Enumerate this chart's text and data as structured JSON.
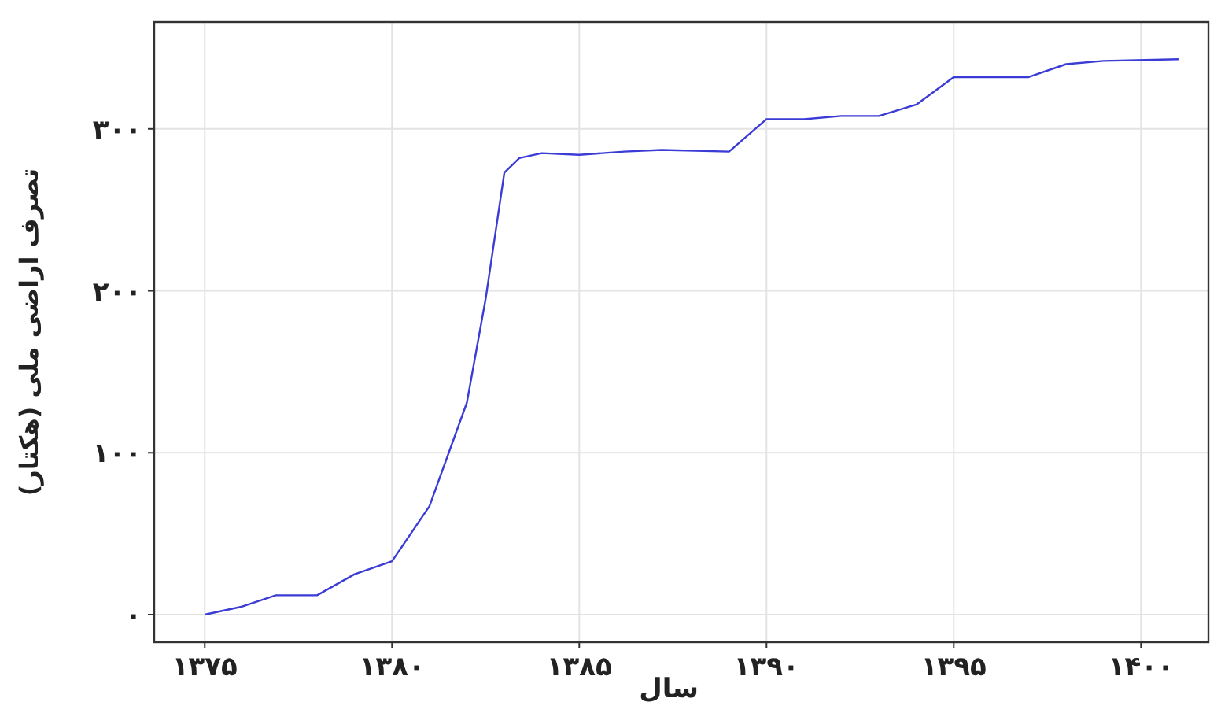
{
  "chart_data": {
    "type": "line",
    "xlabel": "سال",
    "ylabel": "تصرف اراضی ملی (هکتار)",
    "xlim": [
      1373.65,
      1401.8
    ],
    "ylim": [
      -17,
      366
    ],
    "xticks": [
      {
        "value": 1375,
        "label": "۱۳۷۵"
      },
      {
        "value": 1380,
        "label": "۱۳۸۰"
      },
      {
        "value": 1385,
        "label": "۱۳۸۵"
      },
      {
        "value": 1390,
        "label": "۱۳۹۰"
      },
      {
        "value": 1395,
        "label": "۱۳۹۵"
      },
      {
        "value": 1400,
        "label": "۱۴۰۰"
      }
    ],
    "yticks": [
      {
        "value": 0,
        "label": "۰"
      },
      {
        "value": 100,
        "label": "۱۰۰"
      },
      {
        "value": 200,
        "label": "۲۰۰"
      },
      {
        "value": 300,
        "label": "۳۰۰"
      }
    ],
    "grid": true,
    "marker": "none",
    "line_style": "solid",
    "series": [
      {
        "color": "#3b3bd6",
        "x": [
          1375,
          1376,
          1376.9,
          1378,
          1379,
          1380,
          1381,
          1382,
          1382.5,
          1383,
          1383.4,
          1384,
          1385,
          1386.2,
          1387.2,
          1389,
          1390,
          1391,
          1392,
          1393,
          1394,
          1395,
          1397,
          1398,
          1399,
          1401
        ],
        "values": [
          0,
          5,
          12,
          12,
          25,
          33,
          67,
          131,
          195,
          273,
          282,
          285,
          284,
          286,
          287,
          286,
          306,
          306,
          308,
          308,
          315,
          332,
          332,
          340,
          342,
          343
        ]
      }
    ]
  }
}
